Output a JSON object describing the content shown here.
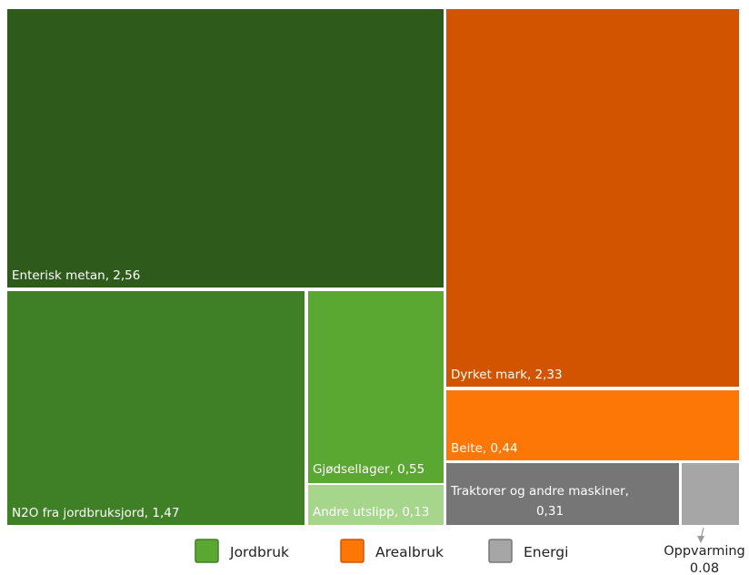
{
  "chart_data": {
    "type": "treemap",
    "tiles": [
      {
        "name": "Enterisk metan",
        "value_text": "2,56",
        "value": 2.56,
        "group": "Jordbruk",
        "color": "#2e5a1c"
      },
      {
        "name": "N2O fra jordbruksjord",
        "value_text": "1,47",
        "value": 1.47,
        "group": "Jordbruk",
        "color": "#3f7f26"
      },
      {
        "name": "Gjødsellager",
        "value_text": "0,55",
        "value": 0.55,
        "group": "Jordbruk",
        "color": "#5aa832"
      },
      {
        "name": "Andre utslipp",
        "value_text": "0,13",
        "value": 0.13,
        "group": "Jordbruk",
        "color": "#a5d68c"
      },
      {
        "name": "Dyrket mark",
        "value_text": "2,33",
        "value": 2.33,
        "group": "Arealbruk",
        "color": "#d35400"
      },
      {
        "name": "Beite",
        "value_text": "0,44",
        "value": 0.44,
        "group": "Arealbruk",
        "color": "#fc7705"
      },
      {
        "name": "Traktorer og andre maskiner,",
        "value_text": "0,31",
        "value": 0.31,
        "group": "Energi",
        "color": "#767676"
      },
      {
        "name": "Oppvarming",
        "value_text": "0.08",
        "value": 0.08,
        "group": "Energi",
        "color": "#a6a6a6"
      }
    ],
    "legend": [
      {
        "label": "Jordbruk",
        "color": "#5aa832",
        "border": "#3f7f26"
      },
      {
        "label": "Arealbruk",
        "color": "#fc7705",
        "border": "#d35400"
      },
      {
        "label": "Energi",
        "color": "#a6a6a6",
        "border": "#767676"
      }
    ],
    "legend_position": "bottom"
  }
}
